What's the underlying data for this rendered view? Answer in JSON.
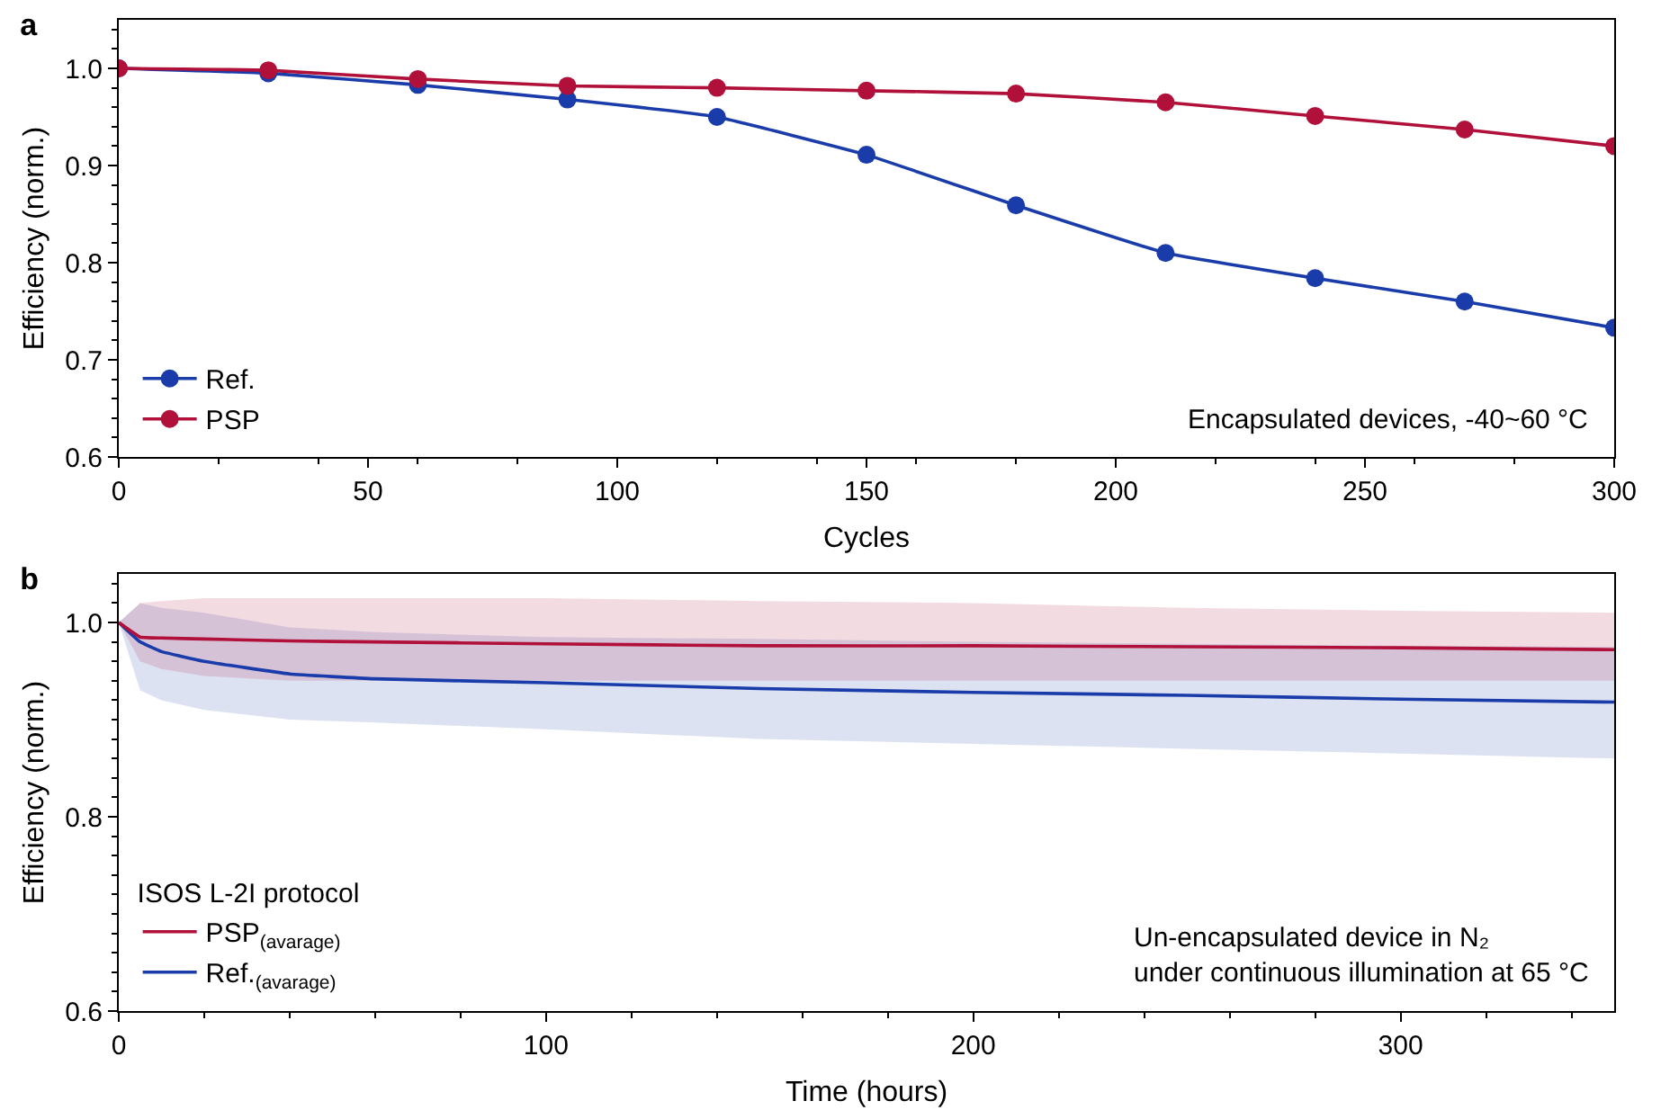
{
  "chart_data": [
    {
      "type": "line",
      "title": "a",
      "xlabel": "Cycles",
      "ylabel": "Efficiency (norm.)",
      "x": [
        0,
        30,
        60,
        90,
        120,
        150,
        180,
        210,
        240,
        270,
        300
      ],
      "series": [
        {
          "name": "Ref.",
          "color": "#1a3caa",
          "values": [
            1.0,
            0.995,
            0.983,
            0.968,
            0.95,
            0.911,
            0.859,
            0.81,
            0.784,
            0.76,
            0.733
          ]
        },
        {
          "name": "PSP",
          "color": "#b0103a",
          "values": [
            1.0,
            0.998,
            0.989,
            0.982,
            0.98,
            0.977,
            0.974,
            0.965,
            0.951,
            0.937,
            0.92
          ]
        }
      ],
      "xlim": [
        0,
        300
      ],
      "xticks": [
        0,
        50,
        100,
        150,
        200,
        250,
        300
      ],
      "ylim": [
        0.6,
        1.05
      ],
      "yticks": [
        0.6,
        0.7,
        0.8,
        0.9,
        {
          "value": 1.0,
          "label": "1.0"
        }
      ],
      "marker": "circle",
      "line_style": "solid",
      "grid": false,
      "legend": "bottom left",
      "annotations": [
        "Encapsulated devices, -40~60 °C"
      ]
    },
    {
      "type": "line",
      "title": "b",
      "xlabel": "Time (hours)",
      "ylabel": "Efficiency (norm.)",
      "legend_title": "ISOS L-2I protocol",
      "x": [
        0,
        5,
        10,
        20,
        40,
        60,
        100,
        150,
        200,
        250,
        300,
        350
      ],
      "series": [
        {
          "name": "Ref.$_{(avarage)}$",
          "color": "#1a3caa",
          "values": [
            1.0,
            0.98,
            0.97,
            0.96,
            0.947,
            0.942,
            0.938,
            0.932,
            0.928,
            0.925,
            0.921,
            0.918
          ],
          "lower": [
            1.0,
            0.93,
            0.92,
            0.91,
            0.9,
            0.897,
            0.89,
            0.88,
            0.875,
            0.87,
            0.865,
            0.86
          ],
          "upper": [
            1.0,
            1.02,
            1.015,
            1.01,
            0.995,
            0.99,
            0.985,
            0.983,
            0.98,
            0.978,
            0.976,
            0.975
          ]
        },
        {
          "name": "PSP$_{(avarage)}$",
          "color": "#b0103a",
          "values": [
            1.0,
            0.985,
            0.984,
            0.983,
            0.981,
            0.98,
            0.978,
            0.976,
            0.976,
            0.975,
            0.974,
            0.972
          ],
          "lower": [
            1.0,
            0.96,
            0.952,
            0.945,
            0.94,
            0.94,
            0.94,
            0.94,
            0.94,
            0.94,
            0.94,
            0.94
          ],
          "upper": [
            1.0,
            1.02,
            1.022,
            1.025,
            1.025,
            1.025,
            1.025,
            1.022,
            1.02,
            1.015,
            1.012,
            1.01
          ]
        }
      ],
      "xlim": [
        0,
        350
      ],
      "xticks": [
        0,
        100,
        200,
        300
      ],
      "ylim": [
        0.6,
        1.05
      ],
      "yticks": [
        0.6,
        0.8,
        {
          "value": 1.0,
          "label": "1.0"
        }
      ],
      "marker": "none",
      "line_style": "solid",
      "grid": false,
      "legend": "bottom left",
      "annotations": [
        "Un-encapsulated device in N₂\nunder continuous illumination at 65 °C"
      ]
    }
  ]
}
